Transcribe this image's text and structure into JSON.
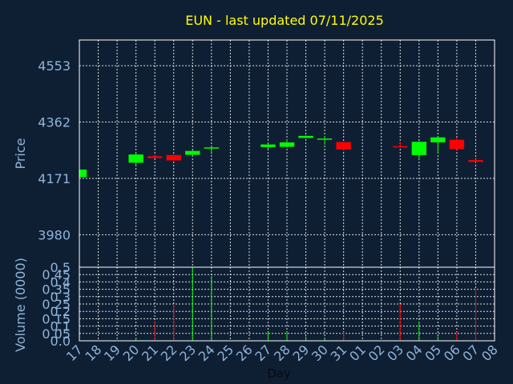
{
  "chart_data": [
    {
      "type": "candlestick",
      "title": "EUN - last updated 07/11/2025",
      "ylabel": "Price",
      "ylim": [
        3870,
        4640
      ],
      "yticks": [
        3980,
        4171,
        4362,
        4553
      ],
      "grid": true,
      "up_color": "#00ff00",
      "down_color": "#ff0000",
      "candles": [
        {
          "day": "17",
          "open": 4175,
          "high": 4201,
          "low": 4175,
          "close": 4201
        },
        {
          "day": "20",
          "open": 4224,
          "high": 4256,
          "low": 4216,
          "close": 4252
        },
        {
          "day": "21",
          "open": 4246,
          "high": 4248,
          "low": 4239,
          "close": 4240
        },
        {
          "day": "22",
          "open": 4250,
          "high": 4256,
          "low": 4230,
          "close": 4232
        },
        {
          "day": "23",
          "open": 4251,
          "high": 4266,
          "low": 4248,
          "close": 4264
        },
        {
          "day": "24",
          "open": 4272,
          "high": 4280,
          "low": 4253,
          "close": 4276
        },
        {
          "day": "27",
          "open": 4277,
          "high": 4289,
          "low": 4271,
          "close": 4286
        },
        {
          "day": "28",
          "open": 4278,
          "high": 4302,
          "low": 4276,
          "close": 4293
        },
        {
          "day": "29",
          "open": 4308,
          "high": 4317,
          "low": 4307,
          "close": 4315
        },
        {
          "day": "30",
          "open": 4304,
          "high": 4315,
          "low": 4285,
          "close": 4306
        },
        {
          "day": "31",
          "open": 4294,
          "high": 4296,
          "low": 4265,
          "close": 4269
        },
        {
          "day": "03",
          "open": 4280,
          "high": 4295,
          "low": 4278,
          "close": 4279
        },
        {
          "day": "04",
          "open": 4250,
          "high": 4297,
          "low": 4234,
          "close": 4295
        },
        {
          "day": "05",
          "open": 4293,
          "high": 4313,
          "low": 4255,
          "close": 4310
        },
        {
          "day": "06",
          "open": 4302,
          "high": 4309,
          "low": 4268,
          "close": 4270
        },
        {
          "day": "07",
          "open": 4233,
          "high": 4236,
          "low": 4225,
          "close": 4227
        }
      ]
    },
    {
      "type": "bar",
      "ylabel": "Volume (0000)",
      "xlabel": "Day",
      "ylim": [
        0,
        0.5
      ],
      "yticks": [
        "0.0",
        "0.05",
        "0.1",
        "0.15",
        "0.2",
        "0.25",
        "0.3",
        "0.35",
        "0.4",
        "0.45",
        "0.5"
      ],
      "categories": [
        "17",
        "18",
        "19",
        "20",
        "21",
        "22",
        "23",
        "24",
        "25",
        "26",
        "27",
        "28",
        "29",
        "30",
        "31",
        "01",
        "02",
        "03",
        "04",
        "05",
        "06",
        "07",
        "08"
      ],
      "values": [
        0.01,
        0,
        0,
        0.02,
        0.13,
        0.25,
        0.5,
        0.44,
        0,
        0,
        0.06,
        0.06,
        0.03,
        0.02,
        0.06,
        0,
        0,
        0.25,
        0.13,
        0.03,
        0.06,
        0.35,
        0
      ],
      "colors": [
        "#00ff00",
        "#00ff00",
        "#00ff00",
        "#00ff00",
        "#ff0000",
        "#ff0000",
        "#00ff00",
        "#00ff00",
        "#00ff00",
        "#00ff00",
        "#00ff00",
        "#00ff00",
        "#00ff00",
        "#00ff00",
        "#ff0000",
        "#00ff00",
        "#00ff00",
        "#ff0000",
        "#00ff00",
        "#00ff00",
        "#ff0000",
        "#ff0000",
        "#00ff00"
      ]
    }
  ]
}
